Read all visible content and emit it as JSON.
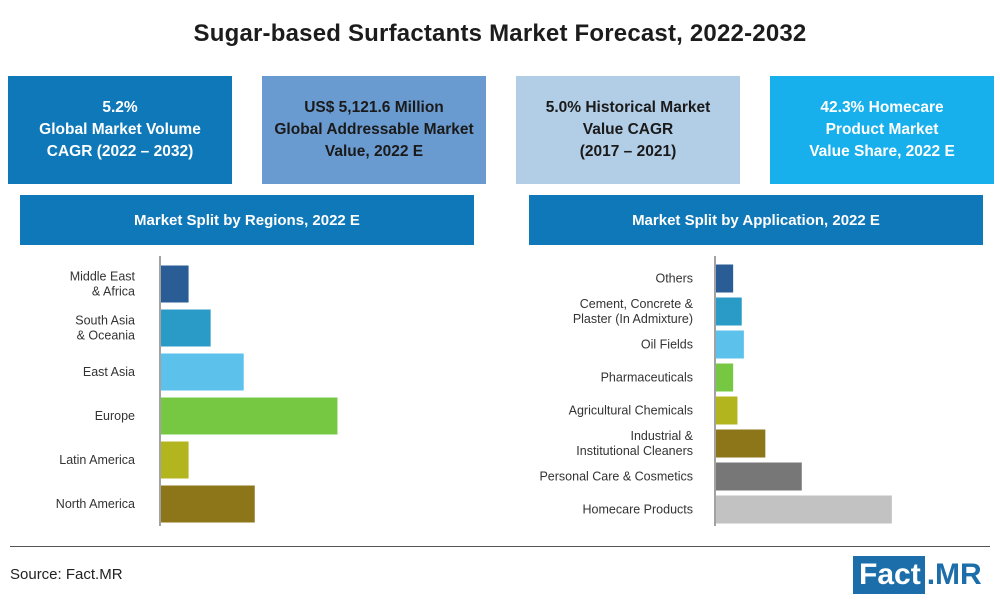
{
  "title": "Sugar-based Surfactants Market Forecast, 2022-2032",
  "kpis": [
    {
      "lines": [
        "5.2%",
        "Global Market Volume",
        "CAGR (2022 – 2032)"
      ],
      "bg": "#0f78b8",
      "fg": "#ffffff"
    },
    {
      "lines": [
        "US$ 5,121.6 Million",
        "Global Addressable Market",
        "Value, 2022 E"
      ],
      "bg": "#6a9bd0",
      "fg": "#1a1a1a"
    },
    {
      "lines": [
        "5.0% Historical Market",
        "Value CAGR",
        "(2017 – 2021)"
      ],
      "bg": "#b2cde6",
      "fg": "#1a1a1a"
    },
    {
      "lines": [
        "42.3% Homecare",
        "Product Market",
        "Value Share, 2022 E"
      ],
      "bg": "#17b0ec",
      "fg": "#ffffff"
    }
  ],
  "panels": {
    "regions_title": "Market Split by Regions, 2022 E",
    "application_title": "Market Split by Application, 2022 E",
    "header_color": "#0f78b8"
  },
  "chart_data": [
    {
      "type": "bar",
      "orientation": "horizontal",
      "title": "Market Split by Regions, 2022 E",
      "categories": [
        [
          "Middle East",
          "& Africa"
        ],
        [
          "South Asia",
          "& Oceania"
        ],
        [
          "East Asia"
        ],
        [
          "Europe"
        ],
        [
          "Latin America"
        ],
        [
          "North America"
        ]
      ],
      "values": [
        5,
        9,
        15,
        32,
        5,
        17
      ],
      "colors": [
        "#2a5c96",
        "#2a9bc7",
        "#5cc2ec",
        "#76c843",
        "#b3b51f",
        "#8d7619"
      ],
      "xlim": [
        0,
        35
      ],
      "grid": false,
      "legend": "none"
    },
    {
      "type": "bar",
      "orientation": "horizontal",
      "title": "Market Split by Application, 2022 E",
      "categories": [
        [
          "Others"
        ],
        [
          "Cement, Concrete &",
          "Plaster (In Admixture)"
        ],
        [
          "Oil Fields"
        ],
        [
          "Pharmaceuticals"
        ],
        [
          "Agricultural Chemicals"
        ],
        [
          "Industrial &",
          "Institutional Cleaners"
        ],
        [
          "Personal Care & Cosmetics"
        ],
        [
          "Homecare Products"
        ]
      ],
      "values": [
        4,
        6,
        6.5,
        4,
        5,
        11.5,
        20,
        41
      ],
      "colors": [
        "#2a5c96",
        "#2a9bc7",
        "#5cc2ec",
        "#76c843",
        "#b3b51f",
        "#8d7619",
        "#777777",
        "#c2c2c2"
      ],
      "xlim": [
        0,
        45
      ],
      "grid": false,
      "legend": "none"
    }
  ],
  "footer": {
    "source": "Source: Fact.MR",
    "logo_left": "Fact",
    "logo_right": ".MR"
  }
}
